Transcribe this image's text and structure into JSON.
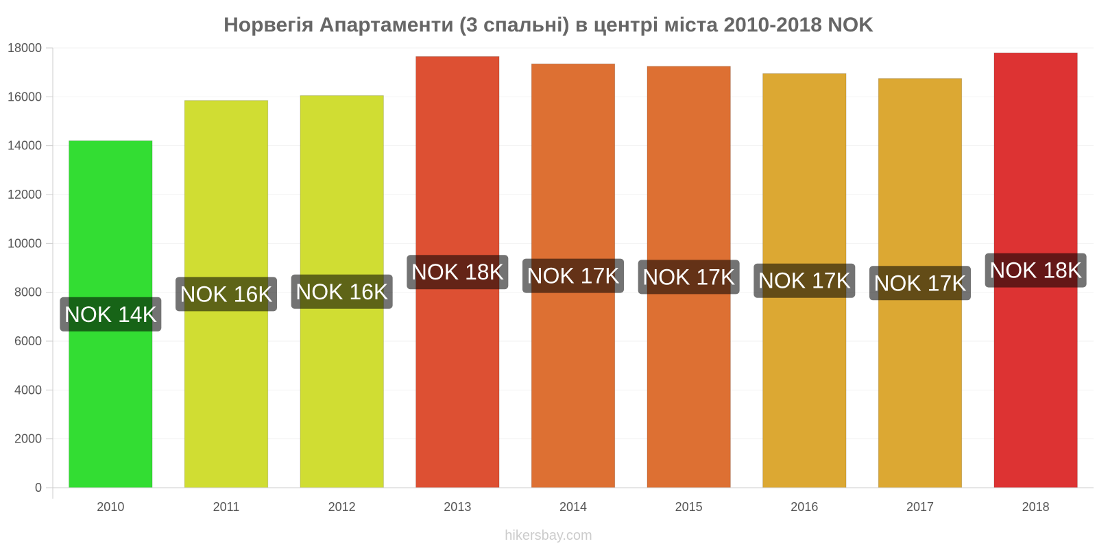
{
  "chart_data": {
    "type": "bar",
    "title": "Норвегія Апартаменти (3 спальні) в центрі міста 2010-2018 NOK",
    "xlabel": "",
    "ylabel": "",
    "categories": [
      "2010",
      "2011",
      "2012",
      "2013",
      "2014",
      "2015",
      "2016",
      "2017",
      "2018"
    ],
    "values": [
      14200,
      15850,
      16050,
      17650,
      17350,
      17250,
      16950,
      16750,
      17800
    ],
    "data_labels": [
      "NOK 14K",
      "NOK 16K",
      "NOK 16K",
      "NOK 18K",
      "NOK 17K",
      "NOK 17K",
      "NOK 17K",
      "NOK 17K",
      "NOK 18K"
    ],
    "colors": [
      "#33dd33",
      "#d0dd33",
      "#d0dd33",
      "#dd5033",
      "#dd7033",
      "#dd7033",
      "#dca833",
      "#dca833",
      "#dd3333"
    ],
    "yticks": [
      0,
      2000,
      4000,
      6000,
      8000,
      10000,
      12000,
      14000,
      16000,
      18000
    ],
    "ylim": [
      0,
      18000
    ],
    "grid": true,
    "legend": "none"
  },
  "credit": "hikersbay.com"
}
